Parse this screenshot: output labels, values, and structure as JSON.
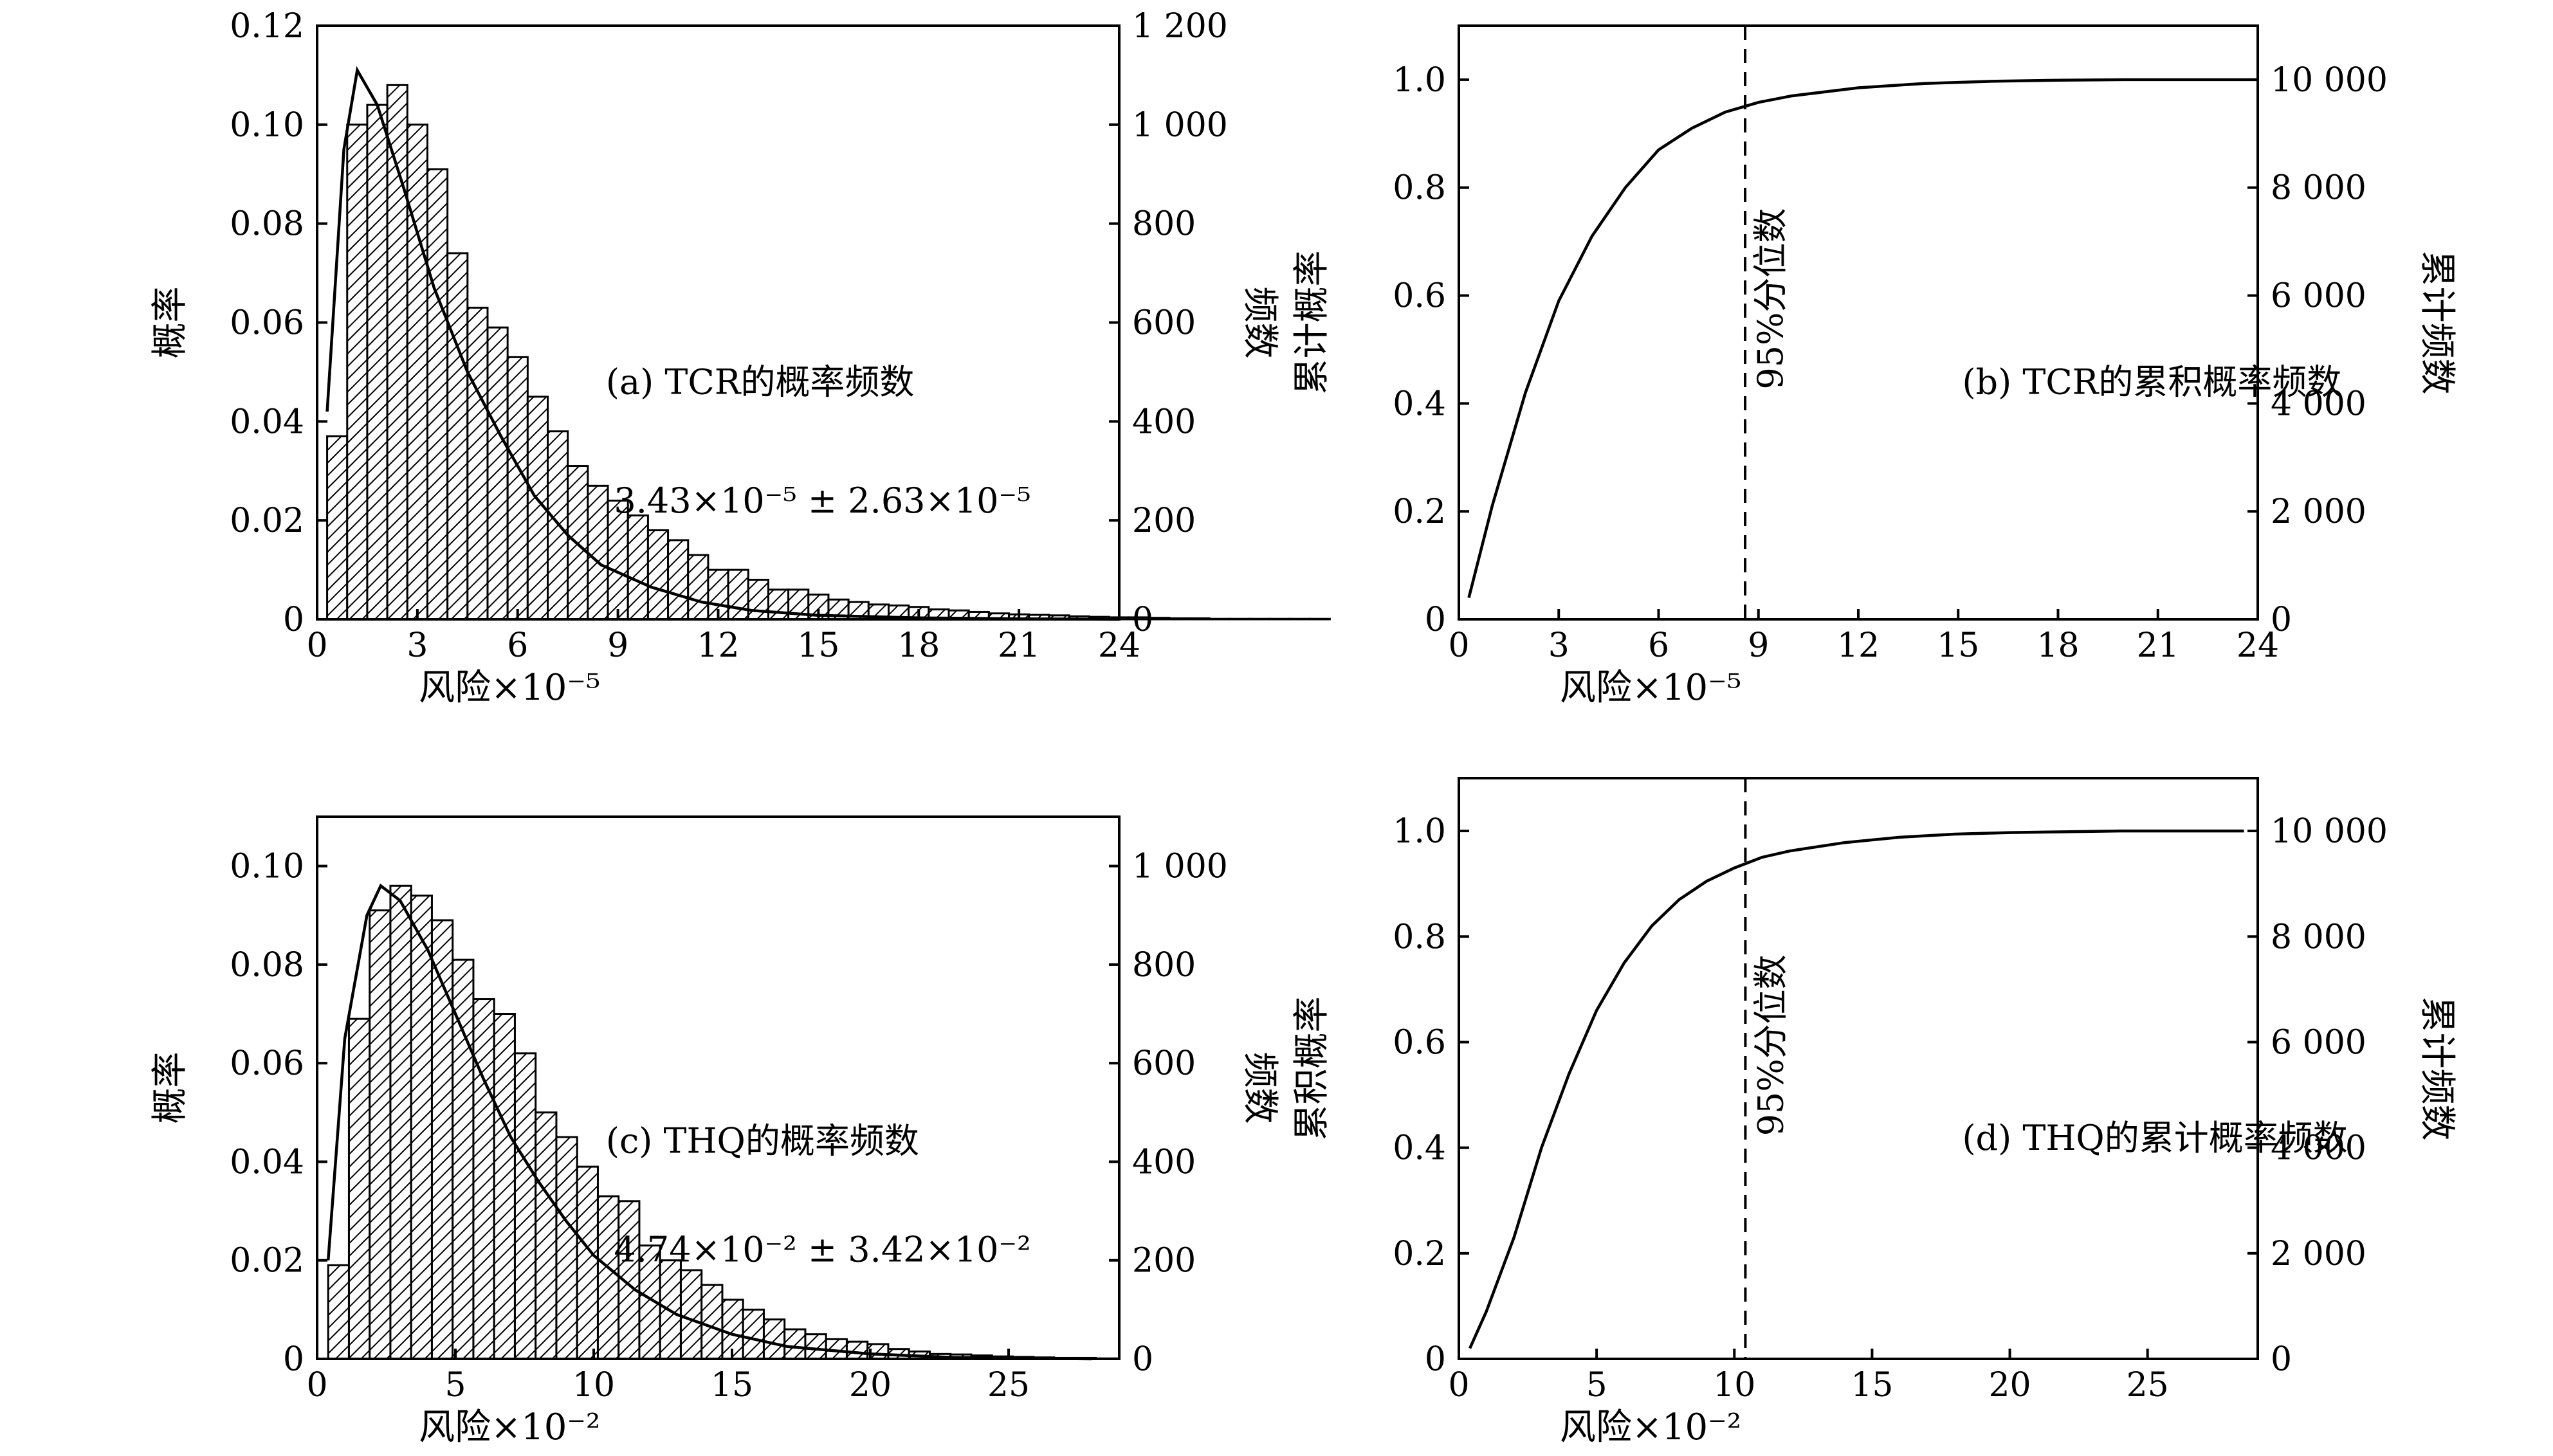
{
  "chart_data": [
    {
      "id": "a",
      "type": "bar",
      "annotation": "(a) TCR的概率频数",
      "stat_text": "3.43×10⁻⁵ ± 2.63×10⁻⁵",
      "xlabel": "风险×10⁻⁵",
      "ylabel": "概率",
      "y2label": "频数",
      "xlim": [
        0,
        24
      ],
      "ylim": [
        0,
        0.12
      ],
      "y2lim": [
        0,
        1200
      ],
      "xticks": [
        "0",
        "3",
        "6",
        "9",
        "12",
        "15",
        "18",
        "21",
        "24"
      ],
      "yticks": [
        "0",
        "0.02",
        "0.04",
        "0.06",
        "0.08",
        "0.10",
        "0.12"
      ],
      "y2ticks": [
        "0",
        "200",
        "400",
        "600",
        "800",
        "1 000",
        "1 200"
      ],
      "bin_start": 0.3,
      "bin_width": 0.6,
      "values": [
        0.037,
        0.1,
        0.104,
        0.108,
        0.1,
        0.091,
        0.074,
        0.063,
        0.059,
        0.053,
        0.045,
        0.038,
        0.031,
        0.027,
        0.024,
        0.021,
        0.018,
        0.016,
        0.013,
        0.01,
        0.01,
        0.008,
        0.006,
        0.006,
        0.005,
        0.004,
        0.0035,
        0.003,
        0.0028,
        0.0025,
        0.002,
        0.0018,
        0.0015,
        0.0012,
        0.001,
        0.0009,
        0.0008,
        0.0006,
        0.0005,
        0.0004,
        0.0004,
        0.0003,
        0.0002,
        0.0002,
        0.0001,
        0.0001,
        0.0001,
        0.0001,
        0.0001,
        0.0001
      ],
      "curve": [
        [
          0.3,
          0.042
        ],
        [
          0.8,
          0.095
        ],
        [
          1.2,
          0.111
        ],
        [
          1.8,
          0.104
        ],
        [
          2.6,
          0.087
        ],
        [
          3.5,
          0.067
        ],
        [
          4.5,
          0.05
        ],
        [
          5.5,
          0.037
        ],
        [
          6.5,
          0.025
        ],
        [
          7.5,
          0.017
        ],
        [
          8.5,
          0.011
        ],
        [
          10,
          0.0065
        ],
        [
          11.5,
          0.0035
        ],
        [
          13,
          0.0018
        ],
        [
          15,
          0.0008
        ],
        [
          18,
          0.0003
        ],
        [
          21,
          0.0001
        ],
        [
          24,
          0
        ]
      ]
    },
    {
      "id": "b",
      "type": "line",
      "annotation": "(b) TCR的累积概率频数",
      "vline_label": "95%分位数",
      "vline_x": 8.6,
      "xlabel": "风险×10⁻⁵",
      "ylabel": "累计概率",
      "y2label": "累计频数",
      "xlim": [
        0,
        24
      ],
      "ylim": [
        0,
        1.1
      ],
      "y2lim": [
        0,
        11000
      ],
      "xticks": [
        "0",
        "3",
        "6",
        "9",
        "12",
        "15",
        "18",
        "21",
        "24"
      ],
      "yticks": [
        "0",
        "0.2",
        "0.4",
        "0.6",
        "0.8",
        "1.0"
      ],
      "y2ticks": [
        "0",
        "2 000",
        "4 000",
        "6 000",
        "8 000",
        "10 000"
      ],
      "x": [
        0.3,
        1,
        2,
        3,
        4,
        5,
        6,
        7,
        8,
        9,
        10,
        12,
        14,
        16,
        18,
        20,
        22,
        24
      ],
      "y": [
        0.04,
        0.21,
        0.42,
        0.59,
        0.71,
        0.8,
        0.87,
        0.91,
        0.94,
        0.958,
        0.97,
        0.985,
        0.993,
        0.997,
        0.999,
        1.0,
        1.0,
        1.0
      ]
    },
    {
      "id": "c",
      "type": "bar",
      "annotation": "(c) THQ的概率频数",
      "stat_text": "4.74×10⁻² ± 3.42×10⁻²",
      "xlabel": "风险×10⁻²",
      "ylabel": "概率",
      "y2label": "频数",
      "xlim": [
        0,
        29
      ],
      "ylim": [
        0,
        0.11
      ],
      "y2lim": [
        0,
        1100
      ],
      "xticks": [
        "0",
        "5",
        "10",
        "15",
        "20",
        "25"
      ],
      "xtick_values": [
        0,
        5,
        10,
        15,
        20,
        25
      ],
      "yticks": [
        "0",
        "0.02",
        "0.04",
        "0.06",
        "0.08",
        "0.10"
      ],
      "y2ticks": [
        "0",
        "200",
        "400",
        "600",
        "800",
        "1 000"
      ],
      "bin_start": 0.4,
      "bin_width": 0.75,
      "values": [
        0.019,
        0.069,
        0.091,
        0.096,
        0.094,
        0.089,
        0.081,
        0.073,
        0.07,
        0.062,
        0.05,
        0.045,
        0.039,
        0.033,
        0.032,
        0.023,
        0.02,
        0.018,
        0.015,
        0.012,
        0.01,
        0.008,
        0.006,
        0.005,
        0.004,
        0.0035,
        0.003,
        0.002,
        0.0015,
        0.001,
        0.0009,
        0.0007,
        0.0005,
        0.0004,
        0.0003,
        0.0002,
        0.0002,
        0.0001
      ],
      "curve": [
        [
          0.4,
          0.02
        ],
        [
          1,
          0.065
        ],
        [
          1.8,
          0.09
        ],
        [
          2.3,
          0.096
        ],
        [
          3,
          0.093
        ],
        [
          4,
          0.083
        ],
        [
          5,
          0.07
        ],
        [
          6,
          0.057
        ],
        [
          7,
          0.045
        ],
        [
          8,
          0.036
        ],
        [
          9,
          0.028
        ],
        [
          10,
          0.021
        ],
        [
          11.5,
          0.014
        ],
        [
          13,
          0.009
        ],
        [
          15,
          0.005
        ],
        [
          17,
          0.0025
        ],
        [
          20,
          0.001
        ],
        [
          23,
          0.0003
        ],
        [
          28,
          0
        ]
      ]
    },
    {
      "id": "d",
      "type": "line",
      "annotation": "(d) THQ的累计概率频数",
      "vline_label": "95%分位数",
      "vline_x": 10.4,
      "xlabel": "风险×10⁻²",
      "ylabel": "累积概率",
      "y2label": "累计频数",
      "xlim": [
        0,
        29
      ],
      "ylim": [
        0,
        1.1
      ],
      "y2lim": [
        0,
        11000
      ],
      "xticks": [
        "0",
        "5",
        "10",
        "15",
        "20",
        "25"
      ],
      "xtick_values": [
        0,
        5,
        10,
        15,
        20,
        25
      ],
      "yticks": [
        "0",
        "0.2",
        "0.4",
        "0.6",
        "0.8",
        "1.0"
      ],
      "y2ticks": [
        "0",
        "2 000",
        "4 000",
        "6 000",
        "8 000",
        "10 000"
      ],
      "x": [
        0.4,
        1,
        2,
        3,
        4,
        5,
        6,
        7,
        8,
        9,
        10,
        11,
        12,
        14,
        16,
        18,
        20,
        24,
        28.5
      ],
      "y": [
        0.02,
        0.09,
        0.23,
        0.4,
        0.54,
        0.66,
        0.75,
        0.82,
        0.87,
        0.905,
        0.93,
        0.95,
        0.962,
        0.978,
        0.988,
        0.994,
        0.997,
        1.0,
        1.0
      ]
    }
  ]
}
